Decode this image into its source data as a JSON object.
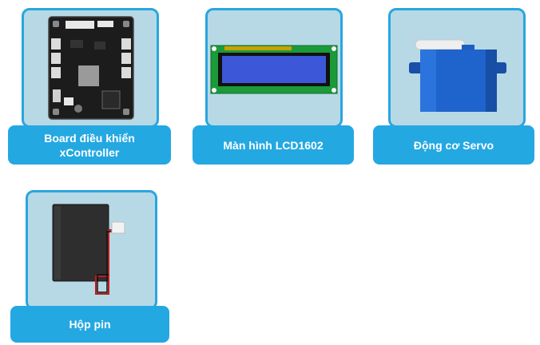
{
  "components": [
    {
      "label_line1": "Board điều khiển",
      "label_line2": "xController",
      "image": "board-icon"
    },
    {
      "label": "Màn hình LCD1602",
      "image": "lcd-icon"
    },
    {
      "label": "Động cơ Servo",
      "image": "servo-icon"
    },
    {
      "label": "Hộp pin",
      "image": "battery-box-icon"
    }
  ],
  "colors": {
    "frame_bg": "#b7d9e6",
    "frame_border": "#29a6df",
    "label_bg": "#24a8e2",
    "label_text": "#ffffff"
  }
}
